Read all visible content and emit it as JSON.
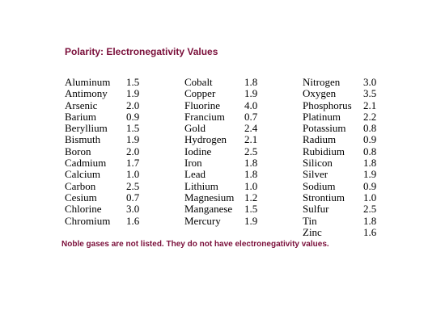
{
  "title": "Polarity: Electronegativity Values",
  "columns": [
    {
      "rows": [
        {
          "element": "Aluminum",
          "value": "1.5"
        },
        {
          "element": "Antimony",
          "value": "1.9"
        },
        {
          "element": "Arsenic",
          "value": "2.0"
        },
        {
          "element": "Barium",
          "value": "0.9"
        },
        {
          "element": "Beryllium",
          "value": "1.5"
        },
        {
          "element": "Bismuth",
          "value": "1.9"
        },
        {
          "element": "Boron",
          "value": "2.0"
        },
        {
          "element": "Cadmium",
          "value": "1.7"
        },
        {
          "element": "Calcium",
          "value": "1.0"
        },
        {
          "element": "Carbon",
          "value": "2.5"
        },
        {
          "element": "Cesium",
          "value": "0.7"
        },
        {
          "element": "Chlorine",
          "value": "3.0"
        },
        {
          "element": "Chromium",
          "value": "1.6"
        }
      ]
    },
    {
      "rows": [
        {
          "element": "Cobalt",
          "value": "1.8"
        },
        {
          "element": "Copper",
          "value": "1.9"
        },
        {
          "element": "Fluorine",
          "value": "4.0"
        },
        {
          "element": "Francium",
          "value": "0.7"
        },
        {
          "element": "Gold",
          "value": "2.4"
        },
        {
          "element": "Hydrogen",
          "value": "2.1"
        },
        {
          "element": "Iodine",
          "value": "2.5"
        },
        {
          "element": "Iron",
          "value": "1.8"
        },
        {
          "element": "Lead",
          "value": "1.8"
        },
        {
          "element": "Lithium",
          "value": "1.0"
        },
        {
          "element": "Magnesium",
          "value": "1.2"
        },
        {
          "element": "Manganese",
          "value": "1.5"
        },
        {
          "element": "Mercury",
          "value": "1.9"
        }
      ]
    },
    {
      "rows": [
        {
          "element": "Nitrogen",
          "value": "3.0"
        },
        {
          "element": "Oxygen",
          "value": "3.5"
        },
        {
          "element": "Phosphorus",
          "value": "2.1"
        },
        {
          "element": "Platinum",
          "value": "2.2"
        },
        {
          "element": "Potassium",
          "value": "0.8"
        },
        {
          "element": "Radium",
          "value": "0.9"
        },
        {
          "element": "Rubidium",
          "value": "0.8"
        },
        {
          "element": "Silicon",
          "value": "1.8"
        },
        {
          "element": "Silver",
          "value": "1.9"
        },
        {
          "element": "Sodium",
          "value": "0.9"
        },
        {
          "element": "Strontium",
          "value": "1.0"
        },
        {
          "element": "Sulfur",
          "value": "2.5"
        },
        {
          "element": "Tin",
          "value": "1.8"
        },
        {
          "element": "Zinc",
          "value": "1.6"
        }
      ]
    }
  ],
  "footnote": "Noble gases are not listed.  They do not have electronegativity values.",
  "colors": {
    "heading": "#7a0f3a",
    "text": "#000000",
    "background": "#ffffff"
  }
}
